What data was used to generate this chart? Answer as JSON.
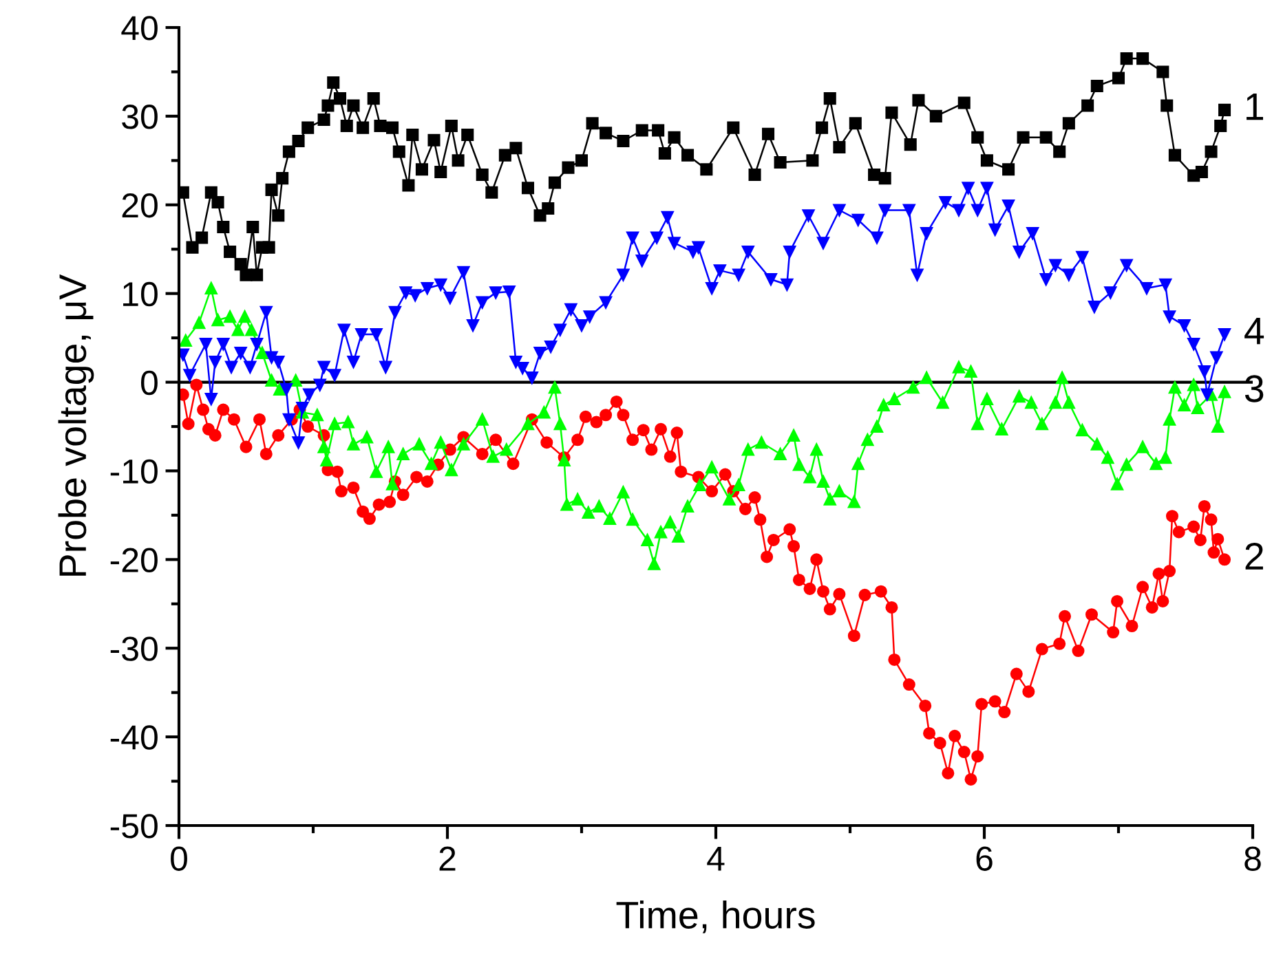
{
  "chart_data": {
    "type": "line",
    "xlabel": "Time, hours",
    "ylabel": "Probe voltage, μV",
    "xlim": [
      0,
      8
    ],
    "xticks": [
      0,
      {
        "value": 1,
        "label": null
      },
      2,
      {
        "value": 3,
        "label": null
      },
      4,
      {
        "value": 5,
        "label": null
      },
      6,
      {
        "value": 7,
        "label": null
      },
      8
    ],
    "ylim": [
      -50,
      40
    ],
    "yticks": [
      -50,
      {
        "value": -45,
        "label": null
      },
      -40,
      {
        "value": -35,
        "label": null
      },
      -30,
      {
        "value": -25,
        "label": null
      },
      -20,
      {
        "value": -15,
        "label": null
      },
      -10,
      {
        "value": -5,
        "label": null
      },
      0,
      {
        "value": 5,
        "label": null
      },
      10,
      {
        "value": 15,
        "label": null
      },
      20,
      {
        "value": 25,
        "label": null
      },
      30,
      {
        "value": 35,
        "label": null
      },
      40
    ],
    "grid": false,
    "legend": false,
    "ref_lines": [
      {
        "axis": "y",
        "value": 0,
        "color": "#000000"
      }
    ],
    "series": [
      {
        "name": "1",
        "color": "#000000",
        "marker": "square",
        "x": [
          0.03,
          0.1,
          0.17,
          0.24,
          0.29,
          0.33,
          0.38,
          0.46,
          0.5,
          0.55,
          0.58,
          0.62,
          0.67,
          0.69,
          0.74,
          0.77,
          0.82,
          0.89,
          0.96,
          1.08,
          1.11,
          1.15,
          1.2,
          1.25,
          1.3,
          1.37,
          1.45,
          1.5,
          1.59,
          1.64,
          1.71,
          1.74,
          1.81,
          1.9,
          1.95,
          2.03,
          2.08,
          2.15,
          2.26,
          2.33,
          2.43,
          2.51,
          2.6,
          2.69,
          2.75,
          2.8,
          2.9,
          3.0,
          3.08,
          3.18,
          3.31,
          3.45,
          3.57,
          3.62,
          3.69,
          3.79,
          3.93,
          4.13,
          4.29,
          4.39,
          4.48,
          4.72,
          4.79,
          4.85,
          4.92,
          5.04,
          5.18,
          5.26,
          5.31,
          5.45,
          5.51,
          5.64,
          5.85,
          5.95,
          6.02,
          6.18,
          6.29,
          6.46,
          6.56,
          6.63,
          6.77,
          6.84,
          7.0,
          7.06,
          7.18,
          7.33,
          7.36,
          7.42,
          7.56,
          7.62,
          7.69,
          7.76,
          7.79
        ],
        "values": [
          21.4,
          15.2,
          16.3,
          21.4,
          20.3,
          17.5,
          14.7,
          13.3,
          12.1,
          17.5,
          12.1,
          15.2,
          15.2,
          21.7,
          18.8,
          23,
          26,
          27.2,
          28.7,
          29.6,
          31.2,
          33.8,
          32,
          28.9,
          31.2,
          28.7,
          32,
          28.9,
          28.7,
          26,
          22.2,
          27.9,
          24,
          27.3,
          23.7,
          28.9,
          25,
          27.9,
          23.4,
          21.4,
          25.6,
          26.4,
          21.9,
          18.8,
          19.6,
          22.5,
          24.2,
          25,
          29.2,
          28.1,
          27.2,
          28.4,
          28.4,
          25.8,
          27.6,
          25.6,
          24,
          28.7,
          23.4,
          28,
          24.8,
          25,
          28.7,
          32,
          26.5,
          29.2,
          23.4,
          23,
          30.4,
          26.8,
          31.8,
          30,
          31.5,
          27.6,
          25,
          24,
          27.6,
          27.6,
          26,
          29.2,
          31.2,
          33.4,
          34.3,
          36.5,
          36.5,
          35,
          31.2,
          25.6,
          23.3,
          23.7,
          26,
          28.9,
          30.7
        ]
      },
      {
        "name": "2",
        "color": "#ff0000",
        "marker": "circle",
        "x": [
          0.03,
          0.07,
          0.13,
          0.18,
          0.22,
          0.27,
          0.33,
          0.41,
          0.5,
          0.6,
          0.65,
          0.74,
          0.84,
          0.9,
          0.96,
          1.08,
          1.11,
          1.18,
          1.21,
          1.3,
          1.37,
          1.42,
          1.49,
          1.57,
          1.61,
          1.67,
          1.77,
          1.85,
          1.93,
          2.02,
          2.12,
          2.26,
          2.36,
          2.49,
          2.63,
          2.74,
          2.87,
          2.97,
          3.03,
          3.11,
          3.18,
          3.26,
          3.31,
          3.38,
          3.46,
          3.52,
          3.59,
          3.66,
          3.71,
          3.74,
          3.87,
          3.97,
          4.07,
          4.13,
          4.22,
          4.29,
          4.33,
          4.38,
          4.43,
          4.55,
          4.58,
          4.62,
          4.7,
          4.75,
          4.8,
          4.85,
          4.92,
          5.03,
          5.11,
          5.23,
          5.31,
          5.33,
          5.44,
          5.56,
          5.59,
          5.67,
          5.73,
          5.78,
          5.85,
          5.9,
          5.95,
          5.98,
          6.08,
          6.15,
          6.24,
          6.33,
          6.43,
          6.56,
          6.6,
          6.7,
          6.8,
          6.96,
          6.99,
          7.1,
          7.18,
          7.25,
          7.3,
          7.33,
          7.38,
          7.4,
          7.45,
          7.56,
          7.61,
          7.64,
          7.69,
          7.71,
          7.74,
          7.79
        ],
        "values": [
          -1.4,
          -4.7,
          -0.3,
          -3.1,
          -5.3,
          -6,
          -3.1,
          -4.2,
          -7.3,
          -4.2,
          -8.1,
          -6,
          -4.2,
          -3.1,
          -5,
          -6,
          -9.9,
          -10.1,
          -12.3,
          -11.9,
          -14.6,
          -15.4,
          -13.8,
          -13.5,
          -11.2,
          -12.7,
          -10.7,
          -11.2,
          -9.3,
          -7.6,
          -6.2,
          -8.1,
          -6.5,
          -9.2,
          -4.2,
          -6.8,
          -8.5,
          -6.5,
          -3.9,
          -4.5,
          -3.7,
          -2.2,
          -3.7,
          -6.5,
          -5.4,
          -7.6,
          -5.3,
          -8.4,
          -5.7,
          -10.1,
          -10.7,
          -12.3,
          -10.4,
          -12.3,
          -14.3,
          -13,
          -15.5,
          -19.7,
          -17.8,
          -16.6,
          -18.5,
          -22.3,
          -23.3,
          -20,
          -23.6,
          -25.6,
          -23.9,
          -28.6,
          -24,
          -23.6,
          -25.4,
          -31.3,
          -34.1,
          -36.5,
          -39.6,
          -40.7,
          -44.1,
          -39.9,
          -41.7,
          -44.8,
          -42.2,
          -36.3,
          -36,
          -37.2,
          -32.9,
          -34.9,
          -30.1,
          -29.5,
          -26.4,
          -30.3,
          -26.2,
          -28.2,
          -24.7,
          -27.5,
          -23.1,
          -25.4,
          -21.6,
          -24.7,
          -21.3,
          -15.1,
          -16.9,
          -16.3,
          -17.8,
          -14,
          -15.5,
          -19.2,
          -17.7,
          -20
        ]
      },
      {
        "name": "3",
        "color": "#00ff00",
        "marker": "triangle",
        "x": [
          0.05,
          0.15,
          0.24,
          0.29,
          0.38,
          0.44,
          0.49,
          0.54,
          0.62,
          0.69,
          0.75,
          0.87,
          0.92,
          1.03,
          1.08,
          1.1,
          1.16,
          1.26,
          1.3,
          1.4,
          1.47,
          1.56,
          1.59,
          1.67,
          1.79,
          1.88,
          1.95,
          2.03,
          2.12,
          2.26,
          2.34,
          2.44,
          2.6,
          2.72,
          2.8,
          2.84,
          2.87,
          2.89,
          2.97,
          3.05,
          3.13,
          3.21,
          3.31,
          3.38,
          3.49,
          3.54,
          3.59,
          3.66,
          3.72,
          3.79,
          3.88,
          3.97,
          4.1,
          4.17,
          4.24,
          4.34,
          4.48,
          4.58,
          4.62,
          4.7,
          4.75,
          4.8,
          4.85,
          4.92,
          5.03,
          5.06,
          5.13,
          5.2,
          5.25,
          5.33,
          5.47,
          5.57,
          5.69,
          5.81,
          5.9,
          5.95,
          6.02,
          6.13,
          6.26,
          6.35,
          6.43,
          6.53,
          6.58,
          6.63,
          6.73,
          6.84,
          6.92,
          6.99,
          7.06,
          7.18,
          7.28,
          7.35,
          7.38,
          7.42,
          7.49,
          7.56,
          7.59,
          7.69,
          7.74,
          7.79
        ],
        "values": [
          4.7,
          6.7,
          10.6,
          7,
          7.4,
          5.9,
          7.4,
          5.9,
          3.3,
          0.2,
          -0.8,
          0.2,
          -3.4,
          -3.7,
          -7.3,
          -8.8,
          -4.7,
          -4.5,
          -7,
          -6.2,
          -10.1,
          -7.3,
          -11.5,
          -8.1,
          -7,
          -9.2,
          -6.8,
          -9.9,
          -7,
          -4.2,
          -8.4,
          -7.6,
          -4.7,
          -3.4,
          -0.6,
          -4.7,
          -8.8,
          -13.8,
          -13.2,
          -14.7,
          -14,
          -15.4,
          -12.4,
          -15.5,
          -17.8,
          -20.5,
          -16.9,
          -15.8,
          -17.4,
          -14,
          -11.6,
          -9.6,
          -13.2,
          -11.6,
          -7.6,
          -6.8,
          -8.1,
          -6,
          -9.3,
          -10.7,
          -7.6,
          -11.2,
          -13.2,
          -12.3,
          -13.5,
          -9.2,
          -6.5,
          -5,
          -2.6,
          -1.9,
          -0.6,
          0.5,
          -2.3,
          1.7,
          1.2,
          -4.7,
          -1.9,
          -5.3,
          -1.6,
          -2.3,
          -4.7,
          -2.3,
          0.5,
          -2.3,
          -5.4,
          -7,
          -8.5,
          -11.5,
          -9.3,
          -7.3,
          -9.2,
          -8.5,
          -4.2,
          -0.6,
          -2.6,
          -0.3,
          -2.9,
          -1.4,
          -5,
          -1.1
        ]
      },
      {
        "name": "4",
        "color": "#0000ff",
        "marker": "triangle_down",
        "x": [
          0.03,
          0.08,
          0.2,
          0.24,
          0.27,
          0.33,
          0.39,
          0.46,
          0.53,
          0.58,
          0.65,
          0.69,
          0.74,
          0.8,
          0.82,
          0.89,
          0.92,
          0.97,
          1.05,
          1.08,
          1.16,
          1.23,
          1.3,
          1.36,
          1.47,
          1.54,
          1.61,
          1.69,
          1.76,
          1.85,
          1.95,
          2.02,
          2.12,
          2.19,
          2.26,
          2.36,
          2.46,
          2.51,
          2.56,
          2.63,
          2.69,
          2.77,
          2.84,
          2.92,
          3.0,
          3.06,
          3.18,
          3.31,
          3.38,
          3.45,
          3.56,
          3.64,
          3.69,
          3.83,
          3.87,
          3.97,
          4.03,
          4.17,
          4.24,
          4.41,
          4.53,
          4.55,
          4.69,
          4.8,
          4.92,
          5.06,
          5.2,
          5.26,
          5.44,
          5.5,
          5.57,
          5.71,
          5.81,
          5.88,
          5.95,
          6.02,
          6.08,
          6.18,
          6.26,
          6.36,
          6.46,
          6.53,
          6.63,
          6.73,
          6.82,
          6.94,
          7.06,
          7.21,
          7.35,
          7.38,
          7.49,
          7.56,
          7.64,
          7.66,
          7.73,
          7.79
        ],
        "values": [
          3.1,
          0.8,
          4.3,
          -1.9,
          2.3,
          4.3,
          1.7,
          3.3,
          1.7,
          4.3,
          7.9,
          2.8,
          2.3,
          -0.8,
          -4.2,
          -6.8,
          -2.9,
          -1.4,
          -0.3,
          1.7,
          0.8,
          5.9,
          2.3,
          5.4,
          5.4,
          1.7,
          7.9,
          10.1,
          9.8,
          10.6,
          11,
          9.5,
          12.4,
          6.4,
          9,
          10.1,
          10.2,
          2.3,
          1.6,
          0.5,
          3.3,
          4,
          5.9,
          8.2,
          6.4,
          7.4,
          9,
          12.1,
          16.3,
          13.7,
          16.3,
          18.6,
          15.7,
          14.7,
          15.2,
          10.6,
          12.6,
          12.1,
          14.7,
          11.6,
          11,
          14.7,
          18.8,
          15.7,
          19.4,
          18.3,
          16.3,
          19.4,
          19.4,
          12.1,
          16.8,
          20.3,
          19.4,
          21.9,
          19.4,
          21.9,
          17.2,
          19.9,
          14.7,
          16.8,
          11.6,
          13.2,
          12.1,
          14.1,
          8.5,
          10.1,
          13.2,
          10.6,
          11,
          7.4,
          6.4,
          4.3,
          1.2,
          -1.4,
          2.8,
          5.4
        ]
      }
    ]
  }
}
